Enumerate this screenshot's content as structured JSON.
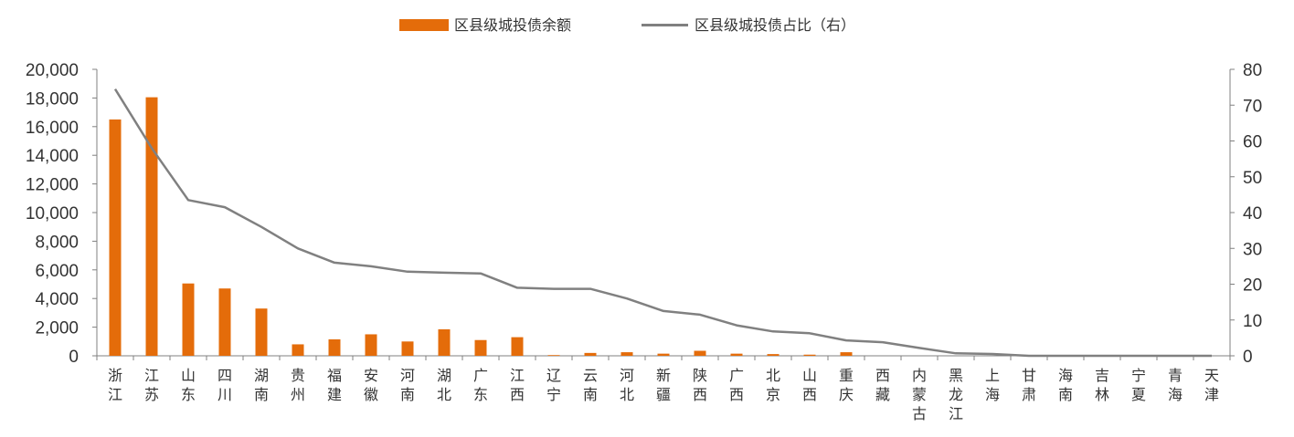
{
  "chart_data": {
    "type": "bar",
    "categories": [
      "浙江",
      "江苏",
      "山东",
      "四川",
      "湖南",
      "贵州",
      "福建",
      "安徽",
      "河南",
      "湖北",
      "广东",
      "江西",
      "辽宁",
      "云南",
      "河北",
      "新疆",
      "陕西",
      "广西",
      "北京",
      "山西",
      "重庆",
      "西藏",
      "内蒙古",
      "黑龙江",
      "上海",
      "甘肃",
      "海南",
      "吉林",
      "宁夏",
      "青海",
      "天津"
    ],
    "series": [
      {
        "name": "区县级城投债余额",
        "type": "bar",
        "axis": "left",
        "color": "#E46C0A",
        "values": [
          16500,
          18050,
          5050,
          4700,
          3300,
          800,
          1150,
          1500,
          1000,
          1850,
          1100,
          1300,
          50,
          200,
          250,
          150,
          350,
          150,
          120,
          80,
          250,
          0,
          0,
          0,
          0,
          0,
          0,
          0,
          0,
          0,
          0
        ]
      },
      {
        "name": "区县级城投债占比（右）",
        "type": "line",
        "axis": "right",
        "color": "#808080",
        "values": [
          74.5,
          58,
          43.5,
          41.5,
          36,
          30,
          26,
          25,
          23.5,
          23.2,
          23,
          19,
          18.7,
          18.7,
          16,
          12.5,
          11.5,
          8.5,
          6.8,
          6.3,
          4.3,
          3.8,
          2.2,
          0.7,
          0.5,
          0,
          0,
          0,
          0,
          0,
          0
        ]
      }
    ],
    "y_left": {
      "min": 0,
      "max": 20000,
      "step": 2000,
      "tick_labels": [
        "0",
        "2,000",
        "4,000",
        "6,000",
        "8,000",
        "10,000",
        "12,000",
        "14,000",
        "16,000",
        "18,000",
        "20,000"
      ]
    },
    "y_right": {
      "min": 0,
      "max": 80,
      "step": 10,
      "tick_labels": [
        "0",
        "10",
        "20",
        "30",
        "40",
        "50",
        "60",
        "70",
        "80"
      ]
    },
    "grid": false,
    "legend_position": "top-center"
  }
}
